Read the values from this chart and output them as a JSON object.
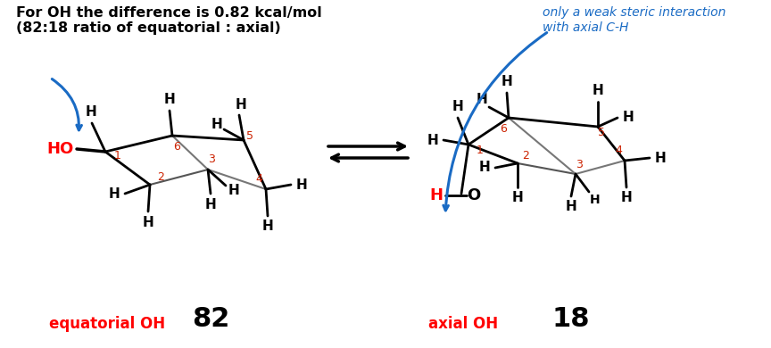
{
  "title_line1": "For OH the difference is 0.82 kcal/mol",
  "title_line2": "(82:18 ratio of equatorial : axial)",
  "annotation_line1": "only a weak steric interaction",
  "annotation_line2": "with axial C-H",
  "label_eq": "equatorial OH",
  "label_ax": "axial OH",
  "num_eq": "82",
  "num_ax": "18",
  "color_red": "#ff0000",
  "color_blue": "#1a6bc4",
  "color_black": "#000000",
  "color_bg": "#ffffff",
  "color_red2": "#cc2200"
}
